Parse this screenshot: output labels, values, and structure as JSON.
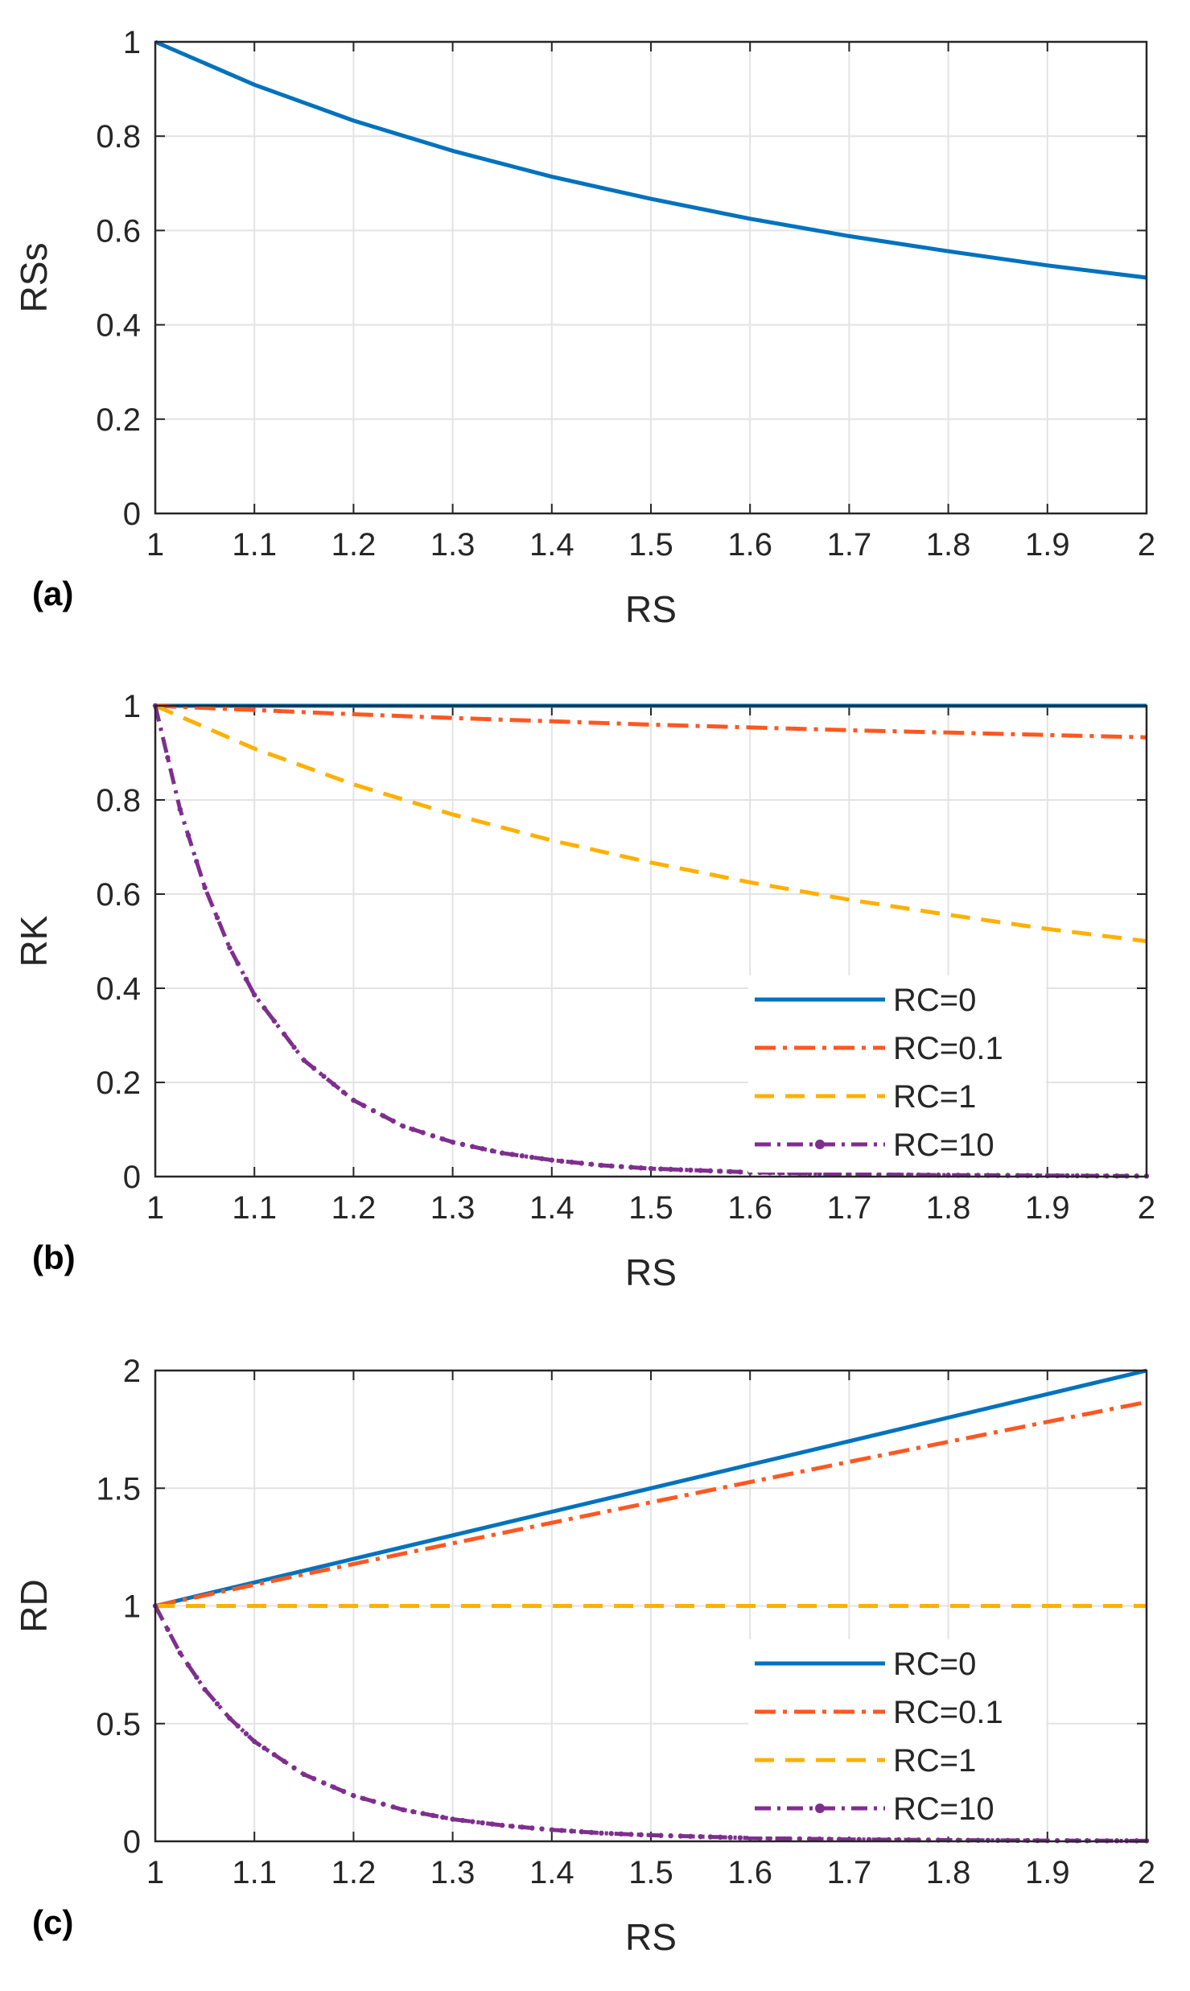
{
  "chart_data": [
    {
      "type": "line",
      "panel_label": "(a)",
      "xlabel": "RS",
      "ylabel": "RSs",
      "xlim": [
        1,
        2
      ],
      "ylim": [
        0,
        1
      ],
      "xticks": [
        "1",
        "1.1",
        "1.2",
        "1.3",
        "1.4",
        "1.5",
        "1.6",
        "1.7",
        "1.8",
        "1.9",
        "2"
      ],
      "yticks": [
        "0",
        "0.2",
        "0.4",
        "0.6",
        "0.8",
        "1"
      ],
      "grid": true,
      "legend": null,
      "series": [
        {
          "name": "RSs",
          "color": "#0072BD",
          "style": "solid",
          "x": [
            1,
            1.1,
            1.2,
            1.3,
            1.4,
            1.5,
            1.6,
            1.7,
            1.8,
            1.9,
            2
          ],
          "values": [
            1,
            0.909,
            0.833,
            0.769,
            0.714,
            0.667,
            0.625,
            0.588,
            0.556,
            0.526,
            0.5
          ]
        }
      ]
    },
    {
      "type": "line",
      "panel_label": "(b)",
      "xlabel": "RS",
      "ylabel": "RK",
      "xlim": [
        1,
        2
      ],
      "ylim": [
        0,
        1
      ],
      "xticks": [
        "1",
        "1.1",
        "1.2",
        "1.3",
        "1.4",
        "1.5",
        "1.6",
        "1.7",
        "1.8",
        "1.9",
        "2"
      ],
      "yticks": [
        "0",
        "0.2",
        "0.4",
        "0.6",
        "0.8",
        "1"
      ],
      "grid": true,
      "legend": "bottom-right",
      "series": [
        {
          "name": "RC=0",
          "color": "#0072BD",
          "style": "solid",
          "x": [
            1,
            1.1,
            1.2,
            1.3,
            1.4,
            1.5,
            1.6,
            1.7,
            1.8,
            1.9,
            2
          ],
          "values": [
            1,
            1,
            1,
            1,
            1,
            1,
            1,
            1,
            1,
            1,
            1
          ]
        },
        {
          "name": "RC=0.1",
          "color": "#FF5722",
          "style": "dashdot",
          "x": [
            1,
            1.1,
            1.2,
            1.3,
            1.4,
            1.5,
            1.6,
            1.7,
            1.8,
            1.9,
            2
          ],
          "values": [
            1,
            0.991,
            0.982,
            0.974,
            0.967,
            0.96,
            0.954,
            0.948,
            0.943,
            0.938,
            0.933
          ]
        },
        {
          "name": "RC=1",
          "color": "#FFB000",
          "style": "dashed",
          "x": [
            1,
            1.1,
            1.2,
            1.3,
            1.4,
            1.5,
            1.6,
            1.7,
            1.8,
            1.9,
            2
          ],
          "values": [
            1,
            0.909,
            0.833,
            0.769,
            0.714,
            0.667,
            0.625,
            0.588,
            0.556,
            0.526,
            0.5
          ]
        },
        {
          "name": "RC=10",
          "color": "#7E2F8E",
          "style": "dashdot-dot",
          "x": [
            1,
            1.025,
            1.05,
            1.075,
            1.1,
            1.15,
            1.2,
            1.25,
            1.3,
            1.35,
            1.4,
            1.45,
            1.5,
            1.6,
            1.7,
            1.8,
            1.9,
            2
          ],
          "values": [
            1,
            0.78,
            0.614,
            0.486,
            0.386,
            0.247,
            0.162,
            0.107,
            0.073,
            0.05,
            0.035,
            0.024,
            0.017,
            0.009,
            0.005,
            0.003,
            0.002,
            0.001
          ]
        }
      ]
    },
    {
      "type": "line",
      "panel_label": "(c)",
      "xlabel": "RS",
      "ylabel": "RD",
      "xlim": [
        1,
        2
      ],
      "ylim": [
        0,
        2
      ],
      "xticks": [
        "1",
        "1.1",
        "1.2",
        "1.3",
        "1.4",
        "1.5",
        "1.6",
        "1.7",
        "1.8",
        "1.9",
        "2"
      ],
      "yticks": [
        "0",
        "0.5",
        "1",
        "1.5",
        "2"
      ],
      "grid": true,
      "legend": "bottom-right",
      "series": [
        {
          "name": "RC=0",
          "color": "#0072BD",
          "style": "solid",
          "x": [
            1,
            1.1,
            1.2,
            1.3,
            1.4,
            1.5,
            1.6,
            1.7,
            1.8,
            1.9,
            2
          ],
          "values": [
            1,
            1.1,
            1.2,
            1.3,
            1.4,
            1.5,
            1.6,
            1.7,
            1.8,
            1.9,
            2
          ]
        },
        {
          "name": "RC=0.1",
          "color": "#FF5722",
          "style": "dashdot",
          "x": [
            1,
            1.1,
            1.2,
            1.3,
            1.4,
            1.5,
            1.6,
            1.7,
            1.8,
            1.9,
            2
          ],
          "values": [
            1,
            1.09,
            1.178,
            1.266,
            1.353,
            1.44,
            1.526,
            1.612,
            1.697,
            1.782,
            1.866
          ]
        },
        {
          "name": "RC=1",
          "color": "#FFB000",
          "style": "dashed",
          "x": [
            1,
            1.1,
            1.2,
            1.3,
            1.4,
            1.5,
            1.6,
            1.7,
            1.8,
            1.9,
            2
          ],
          "values": [
            1,
            1,
            1,
            1,
            1,
            1,
            1,
            1,
            1,
            1,
            1
          ]
        },
        {
          "name": "RC=10",
          "color": "#7E2F8E",
          "style": "dashdot-dot",
          "x": [
            1,
            1.025,
            1.05,
            1.075,
            1.1,
            1.15,
            1.2,
            1.25,
            1.3,
            1.35,
            1.4,
            1.45,
            1.5,
            1.6,
            1.7,
            1.8,
            1.9,
            2
          ],
          "values": [
            1,
            0.8,
            0.645,
            0.523,
            0.424,
            0.284,
            0.194,
            0.134,
            0.094,
            0.068,
            0.049,
            0.035,
            0.026,
            0.014,
            0.008,
            0.005,
            0.003,
            0.002
          ]
        }
      ]
    }
  ]
}
